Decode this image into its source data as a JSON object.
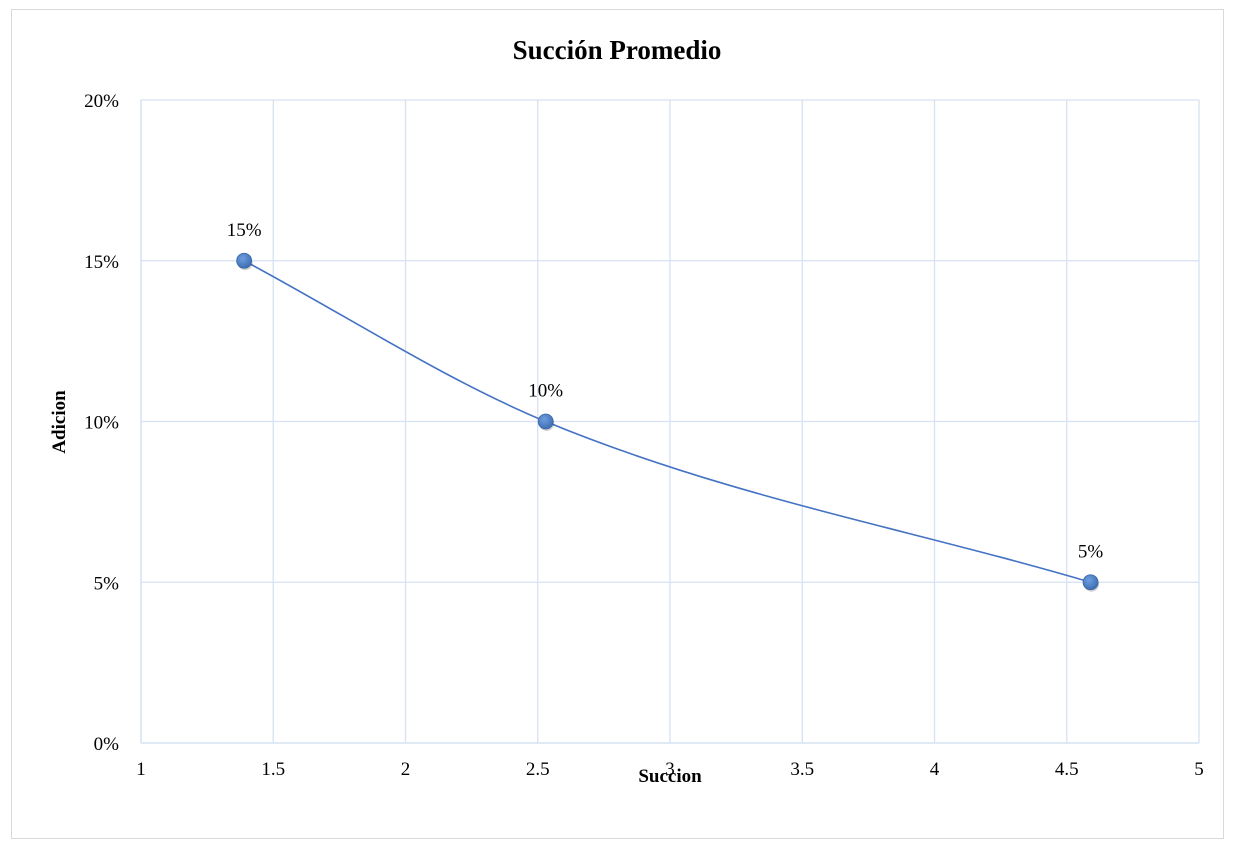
{
  "chart_data": {
    "type": "scatter",
    "title": "Succión Promedio",
    "xlabel": "Succion",
    "ylabel": "Adicion",
    "xlim": [
      1,
      5
    ],
    "ylim": [
      0,
      0.2
    ],
    "x_ticks": [
      1,
      1.5,
      2,
      2.5,
      3,
      3.5,
      4,
      4.5,
      5
    ],
    "x_tick_labels": [
      "1",
      "1.5",
      "2",
      "2.5",
      "3",
      "3.5",
      "4",
      "4.5",
      "5"
    ],
    "y_ticks": [
      0,
      0.05,
      0.1,
      0.15,
      0.2
    ],
    "y_tick_labels": [
      "0%",
      "5%",
      "10%",
      "15%",
      "20%"
    ],
    "grid": true,
    "smooth_line": true,
    "series": [
      {
        "x": [
          1.39,
          2.53,
          4.59
        ],
        "y": [
          0.15,
          0.1,
          0.05
        ],
        "labels": [
          "15%",
          "10%",
          "5%"
        ]
      }
    ],
    "colors": {
      "series": "#4472c4",
      "marker": "#4a7ec4",
      "grid": "#d6e2f3",
      "axis": "#d6e2f3",
      "frame": "#d9d9d9"
    }
  }
}
